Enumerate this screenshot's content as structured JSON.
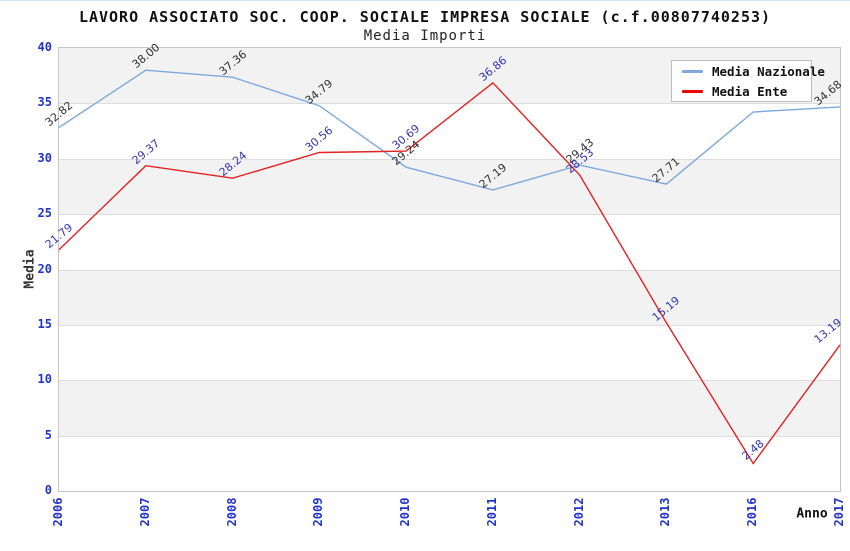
{
  "title": "LAVORO ASSOCIATO SOC. COOP. SOCIALE IMPRESA SOCIALE (c.f.00807740253)",
  "subtitle": "Media Importi",
  "axes": {
    "y_label": "Media",
    "x_label": "Anno",
    "y_ticks": [
      0,
      5,
      10,
      15,
      20,
      25,
      30,
      35,
      40
    ]
  },
  "colors": {
    "tick_label": "#2233cc",
    "gridline": "#dddddd",
    "plot_border": "#c6c6c6",
    "band_gray": "#f2f2f2",
    "band_white": "#ffffff",
    "national_line": "#7da9dd",
    "ente_line": "#e02222",
    "national_value_label": "#2f2f2f",
    "ente_value_label": "#3333b4"
  },
  "chart_data": {
    "type": "line",
    "title": "Media Importi",
    "xlabel": "Anno",
    "ylabel": "Media",
    "ylim": [
      0,
      40
    ],
    "grid": true,
    "band_colors": [
      "#f2f2f2",
      "#ffffff"
    ],
    "legend_position": "top-right",
    "x": [
      "2006",
      "2007",
      "2008",
      "2009",
      "2010",
      "2011",
      "2012",
      "2013",
      "2016",
      "2017"
    ],
    "series": [
      {
        "name": "Media Nazionale",
        "color": "#7da9dd",
        "label_color": "#2f2f2f",
        "values": [
          32.82,
          38.0,
          37.36,
          34.79,
          29.24,
          27.19,
          29.43,
          27.71,
          34.22,
          34.68
        ],
        "labels": [
          "32.82",
          "38.00",
          "37.36",
          "34.79",
          "29.24",
          "27.19",
          "29.43",
          "27.71",
          "",
          "34.68"
        ]
      },
      {
        "name": "Media Ente",
        "color": "#e02222",
        "label_color": "#3333b4",
        "values": [
          21.79,
          29.37,
          28.24,
          30.56,
          30.69,
          36.86,
          28.53,
          15.19,
          2.48,
          13.19
        ],
        "labels": [
          "21.79",
          "29.37",
          "28.24",
          "30.56",
          "30.69",
          "36.86",
          "28.53",
          "15.19",
          "2.48",
          "13.19"
        ]
      }
    ]
  },
  "legend": {
    "items": [
      {
        "label": "Media Nazionale",
        "color": "#7da9dd"
      },
      {
        "label": "Media Ente",
        "color": "#ee0000"
      }
    ]
  }
}
